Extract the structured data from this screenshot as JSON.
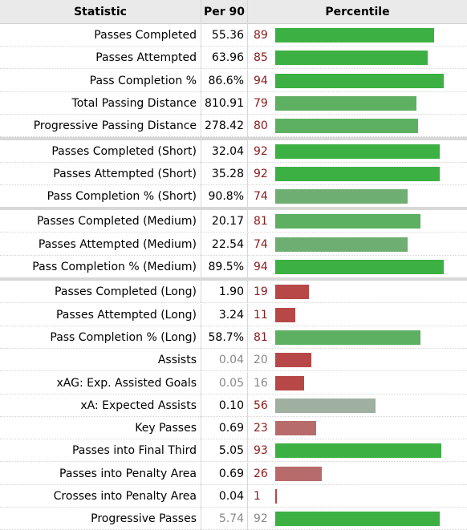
{
  "header": {
    "statistic": "Statistic",
    "per90": "Per 90",
    "percentile": "Percentile"
  },
  "colors": {
    "high": "#3cb043",
    "mid_high": "#5db061",
    "mid": "#6fae72",
    "neutral": "#9fafa0",
    "low_mid": "#b76b6b",
    "low": "#b84848"
  },
  "chart_data": {
    "type": "bar",
    "xlim": [
      0,
      100
    ],
    "columns": [
      "Statistic",
      "Per 90",
      "Percentile"
    ],
    "groups": [
      [
        {
          "label": "Passes Completed",
          "per90": "55.36",
          "percentile": 89
        },
        {
          "label": "Passes Attempted",
          "per90": "63.96",
          "percentile": 85
        },
        {
          "label": "Pass Completion %",
          "per90": "86.6%",
          "percentile": 94
        },
        {
          "label": "Total Passing Distance",
          "per90": "810.91",
          "percentile": 79
        },
        {
          "label": "Progressive Passing Distance",
          "per90": "278.42",
          "percentile": 80
        }
      ],
      [
        {
          "label": "Passes Completed (Short)",
          "per90": "32.04",
          "percentile": 92
        },
        {
          "label": "Passes Attempted (Short)",
          "per90": "35.28",
          "percentile": 92
        },
        {
          "label": "Pass Completion % (Short)",
          "per90": "90.8%",
          "percentile": 74
        }
      ],
      [
        {
          "label": "Passes Completed (Medium)",
          "per90": "20.17",
          "percentile": 81
        },
        {
          "label": "Passes Attempted (Medium)",
          "per90": "22.54",
          "percentile": 74
        },
        {
          "label": "Pass Completion % (Medium)",
          "per90": "89.5%",
          "percentile": 94
        }
      ],
      [
        {
          "label": "Passes Completed (Long)",
          "per90": "1.90",
          "percentile": 19
        },
        {
          "label": "Passes Attempted (Long)",
          "per90": "3.24",
          "percentile": 11
        },
        {
          "label": "Pass Completion % (Long)",
          "per90": "58.7%",
          "percentile": 81
        },
        {
          "label": "Assists",
          "per90": "0.04",
          "percentile": 20,
          "muted": true
        },
        {
          "label": "xAG: Exp. Assisted Goals",
          "per90": "0.05",
          "percentile": 16,
          "muted": true
        },
        {
          "label": "xA: Expected Assists",
          "per90": "0.10",
          "percentile": 56
        },
        {
          "label": "Key Passes",
          "per90": "0.69",
          "percentile": 23
        },
        {
          "label": "Passes into Final Third",
          "per90": "5.05",
          "percentile": 93
        },
        {
          "label": "Passes into Penalty Area",
          "per90": "0.69",
          "percentile": 26
        },
        {
          "label": "Crosses into Penalty Area",
          "per90": "0.04",
          "percentile": 1
        },
        {
          "label": "Progressive Passes",
          "per90": "5.74",
          "percentile": 92,
          "muted": true
        }
      ]
    ]
  }
}
